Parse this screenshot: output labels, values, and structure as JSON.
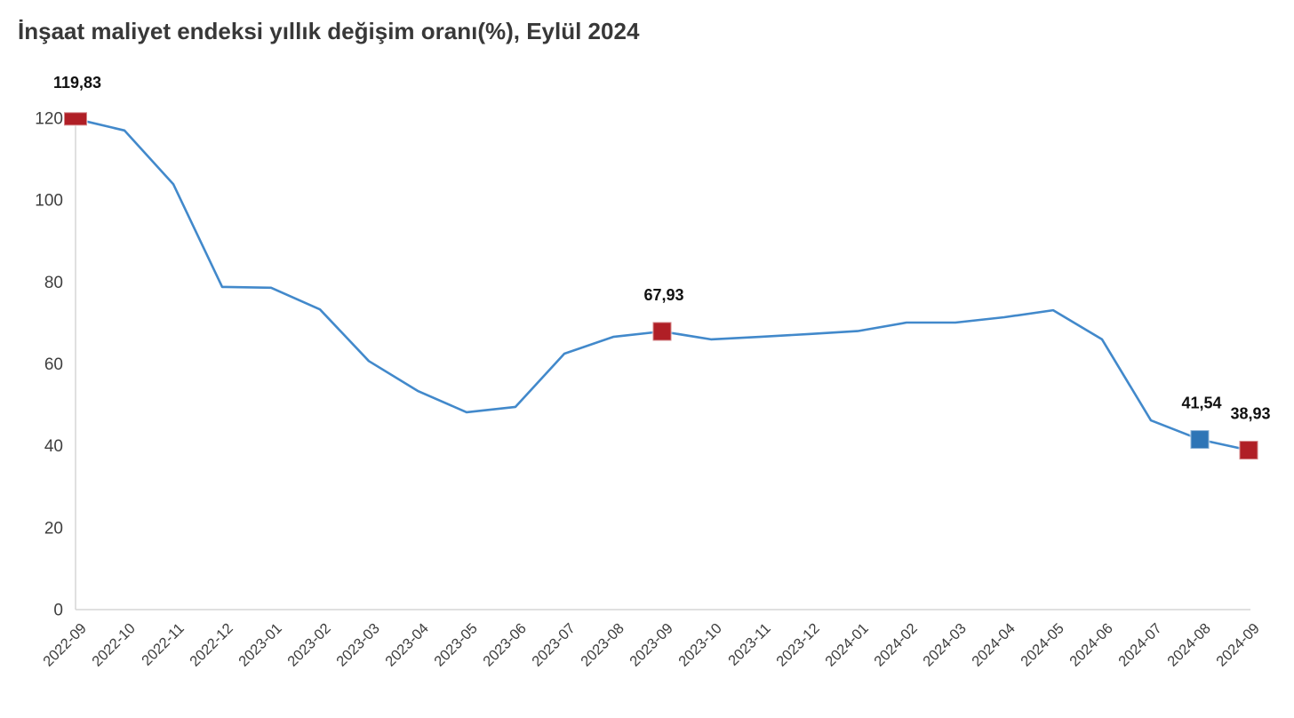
{
  "title": "İnşaat maliyet endeksi yıllık değişim oranı(%), Eylül 2024",
  "chart_data": {
    "type": "line",
    "title": "İnşaat maliyet endeksi yıllık değişim oranı(%), Eylül 2024",
    "x": [
      "2022-09",
      "2022-10",
      "2022-11",
      "2022-12",
      "2023-01",
      "2023-02",
      "2023-03",
      "2023-04",
      "2023-05",
      "2023-06",
      "2023-07",
      "2023-08",
      "2023-09",
      "2023-10",
      "2023-11",
      "2023-12",
      "2024-01",
      "2024-02",
      "2024-03",
      "2024-04",
      "2024-05",
      "2024-06",
      "2024-07",
      "2024-08",
      "2024-09"
    ],
    "values": [
      119.83,
      117.0,
      103.9,
      78.8,
      78.6,
      73.3,
      60.7,
      53.4,
      48.2,
      49.5,
      62.5,
      66.6,
      67.93,
      66.0,
      66.6,
      67.3,
      68.0,
      70.1,
      70.1,
      71.4,
      73.1,
      66.0,
      46.2,
      41.54,
      38.93
    ],
    "xlabel": "",
    "ylabel": "",
    "ylim": [
      0,
      120
    ],
    "yticks": [
      0,
      20,
      40,
      60,
      80,
      100,
      120
    ],
    "grid": false,
    "legend": false,
    "line_color": "#4289cb",
    "annotations": [
      {
        "index": 0,
        "label": "119,83",
        "marker_color": "#b01f26",
        "marker_shape": "rect"
      },
      {
        "index": 12,
        "label": "67,93",
        "marker_color": "#b01f26",
        "marker_shape": "square"
      },
      {
        "index": 23,
        "label": "41,54",
        "marker_color": "#2e75b6",
        "marker_shape": "square"
      },
      {
        "index": 24,
        "label": "38,93",
        "marker_color": "#b01f26",
        "marker_shape": "square"
      }
    ]
  }
}
